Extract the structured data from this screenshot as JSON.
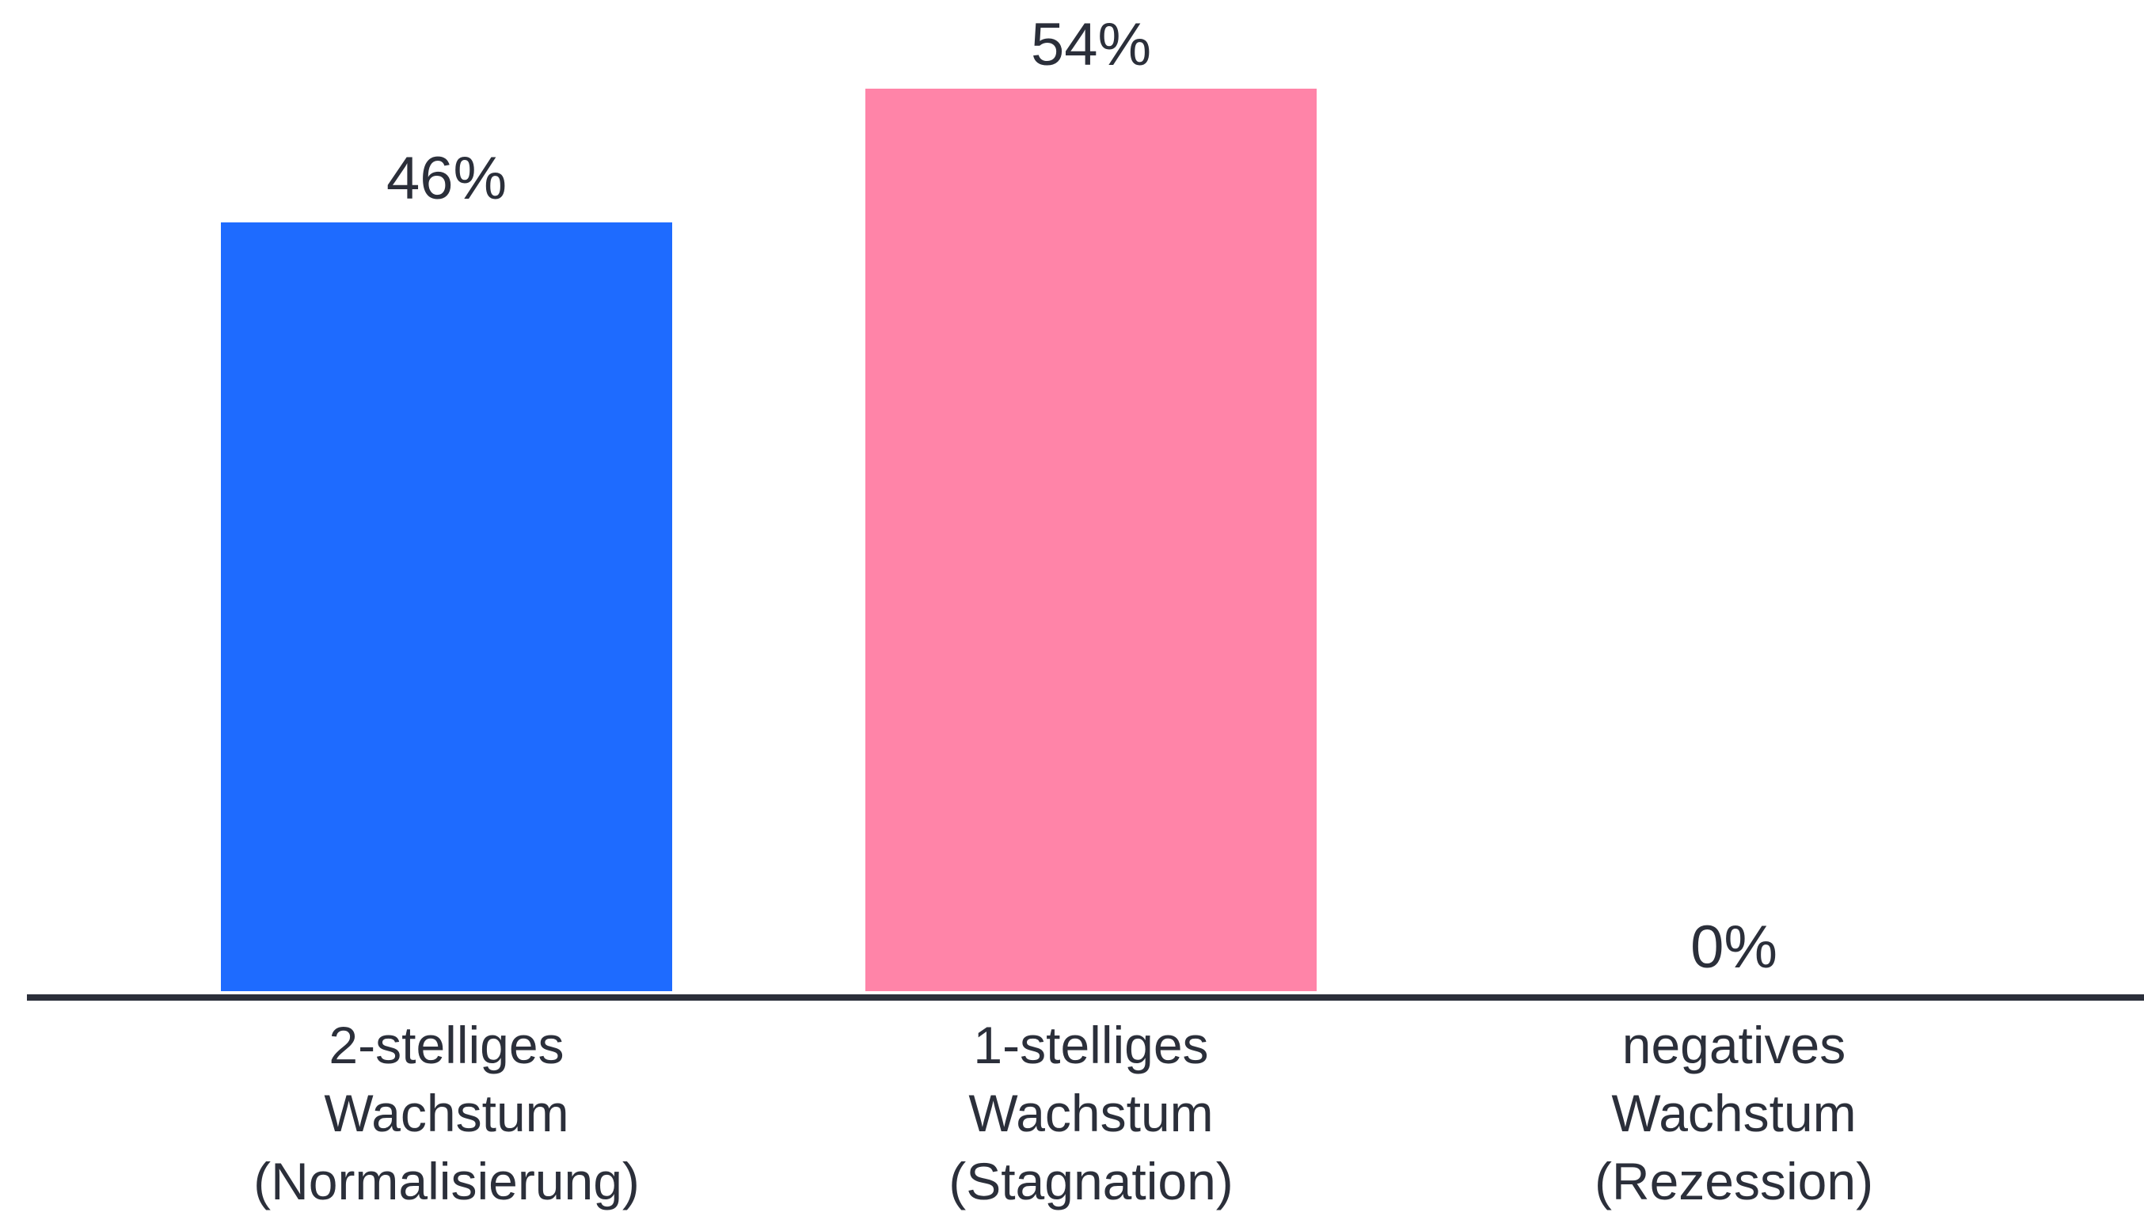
{
  "chart_data": {
    "type": "bar",
    "title": "",
    "xlabel": "",
    "ylabel": "",
    "ylim": [
      0,
      60
    ],
    "grid": false,
    "legend": "none",
    "unit": "%",
    "categories": [
      [
        "2-stelliges",
        "Wachstum",
        "(Normalisierung)"
      ],
      [
        "1-stelliges",
        "Wachstum",
        "(Stagnation)"
      ],
      [
        "negatives",
        "Wachstum",
        "(Rezession)"
      ]
    ],
    "values": [
      46,
      54,
      0
    ],
    "value_labels": [
      "46%",
      "54%",
      "0%"
    ],
    "colors": [
      "#1e6bff",
      "#ff84a8",
      "#c9ccd3"
    ]
  },
  "style": {
    "axis_color": "#2b2f3a",
    "text_color": "#2b2f3a",
    "background": "#ffffff"
  }
}
